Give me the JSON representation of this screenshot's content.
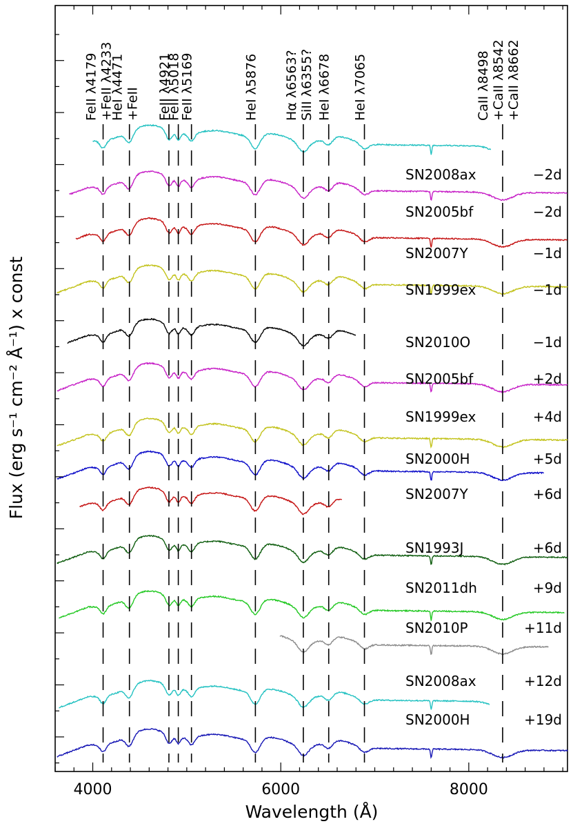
{
  "chart_data": {
    "type": "line",
    "title": "",
    "xlabel": "Wavelength (Å)",
    "ylabel": "Flux (erg s⁻¹ cm⁻² Å⁻¹) x const",
    "xlim": [
      3600,
      9050
    ],
    "ylim": [
      0,
      1
    ],
    "x_ticks": [
      4000,
      6000,
      8000
    ],
    "x_minor_step": 200,
    "y_tick_labels": "none",
    "grid": false,
    "line_ids": [
      {
        "label": "FeII λ4179",
        "x": 4110
      },
      {
        "label": "+FeII λ4233",
        "x": 4110
      },
      {
        "label": "HeI λ4471",
        "x": 4390
      },
      {
        "label": "+FeII",
        "x": 4390
      },
      {
        "label": "FeII λ4921",
        "x": 4810
      },
      {
        "label": "FeII λ5018",
        "x": 4910
      },
      {
        "label": "FeII λ5169",
        "x": 5050
      },
      {
        "label": "HeI λ5876",
        "x": 5730
      },
      {
        "label": "Hα λ6563?",
        "x": 6240
      },
      {
        "label": "SiII λ6355?",
        "x": 6240
      },
      {
        "label": "HeI λ6678",
        "x": 6510
      },
      {
        "label": "HeI λ7065",
        "x": 6890
      },
      {
        "label": "CaII λ8498",
        "x": 8360
      },
      {
        "label": "+CaII λ8542",
        "x": 8360
      },
      {
        "label": "+CaII λ8662",
        "x": 8360
      }
    ],
    "series": [
      {
        "name": "SN2008ax",
        "phase": "−2d",
        "color": "#22c1c1",
        "x_range": [
          4000,
          8240
        ]
      },
      {
        "name": "SN2005bf",
        "phase": "−2d",
        "color": "#c61ec6",
        "x_range": [
          3750,
          9050
        ]
      },
      {
        "name": "SN2007Y",
        "phase": "−1d",
        "color": "#c41010",
        "x_range": [
          3820,
          9050
        ]
      },
      {
        "name": "SN1999ex",
        "phase": "−1d",
        "color": "#c2c21a",
        "x_range": [
          3620,
          9050
        ]
      },
      {
        "name": "SN2010O",
        "phase": "−1d",
        "color": "#000000",
        "x_range": [
          3730,
          6800
        ]
      },
      {
        "name": "SN2005bf",
        "phase": "+2d",
        "color": "#c61ec6",
        "x_range": [
          3620,
          9050
        ]
      },
      {
        "name": "SN1999ex",
        "phase": "+4d",
        "color": "#c2c21a",
        "x_range": [
          3620,
          9050
        ]
      },
      {
        "name": "SN2000H",
        "phase": "+5d",
        "color": "#0b0bc8",
        "x_range": [
          3620,
          8800
        ]
      },
      {
        "name": "SN2007Y",
        "phase": "+6d",
        "color": "#c41010",
        "x_range": [
          3860,
          6650
        ]
      },
      {
        "name": "SN1993J",
        "phase": "+6d",
        "color": "#0d5c0d",
        "x_range": [
          3620,
          9050
        ]
      },
      {
        "name": "SN2011dh",
        "phase": "+9d",
        "color": "#22c822",
        "x_range": [
          3640,
          9020
        ]
      },
      {
        "name": "SN2010P",
        "phase": "+11d",
        "color": "#8a8a8a",
        "x_range": [
          5990,
          8850
        ]
      },
      {
        "name": "SN2008ax",
        "phase": "+12d",
        "color": "#22c1c1",
        "x_range": [
          3640,
          8220
        ]
      },
      {
        "name": "SN2000H",
        "phase": "+19d",
        "color": "#1414b4",
        "x_range": [
          3620,
          9050
        ]
      }
    ]
  }
}
